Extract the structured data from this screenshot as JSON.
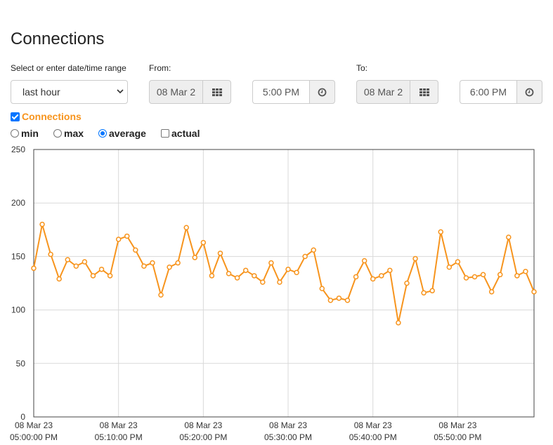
{
  "page": {
    "title": "Connections"
  },
  "range": {
    "label": "Select or enter date/time range",
    "value": "last hour"
  },
  "from": {
    "label": "From:",
    "date": "08 Mar 2",
    "time": "5:00 PM"
  },
  "to": {
    "label": "To:",
    "date": "08 Mar 2",
    "time": "6:00 PM"
  },
  "series_toggle": {
    "label": "Connections",
    "checked": true
  },
  "modes": {
    "min": "min",
    "max": "max",
    "average": "average",
    "actual": "actual",
    "selected": "average"
  },
  "colors": {
    "series": "#f7941d",
    "grid": "#d9d9d9"
  },
  "chart_data": {
    "type": "line",
    "series": [
      {
        "name": "Connections",
        "values": [
          139,
          180,
          152,
          129,
          147,
          141,
          145,
          132,
          138,
          132,
          166,
          169,
          156,
          141,
          144,
          114,
          140,
          144,
          177,
          149,
          163,
          132,
          153,
          134,
          130,
          137,
          132,
          126,
          144,
          126,
          138,
          135,
          150,
          156,
          120,
          109,
          111,
          109,
          131,
          146,
          129,
          132,
          137,
          88,
          125,
          148,
          116,
          118,
          173,
          140,
          145,
          130,
          131,
          133,
          117,
          133,
          168,
          132,
          136,
          117
        ]
      }
    ],
    "x_start": "08 Mar 23 05:00:00 PM",
    "x_interval_seconds": 60,
    "x_ticks": [
      {
        "date": "08 Mar 23",
        "time": "05:00:00 PM",
        "minute": 0
      },
      {
        "date": "08 Mar 23",
        "time": "05:10:00 PM",
        "minute": 10
      },
      {
        "date": "08 Mar 23",
        "time": "05:20:00 PM",
        "minute": 20
      },
      {
        "date": "08 Mar 23",
        "time": "05:30:00 PM",
        "minute": 30
      },
      {
        "date": "08 Mar 23",
        "time": "05:40:00 PM",
        "minute": 40
      },
      {
        "date": "08 Mar 23",
        "time": "05:50:00 PM",
        "minute": 50
      }
    ],
    "xlim_minutes": [
      0,
      59
    ],
    "y_ticks": [
      "0",
      "50",
      "100",
      "150",
      "200",
      "250"
    ],
    "ylim": [
      0,
      250
    ],
    "grid": true
  }
}
